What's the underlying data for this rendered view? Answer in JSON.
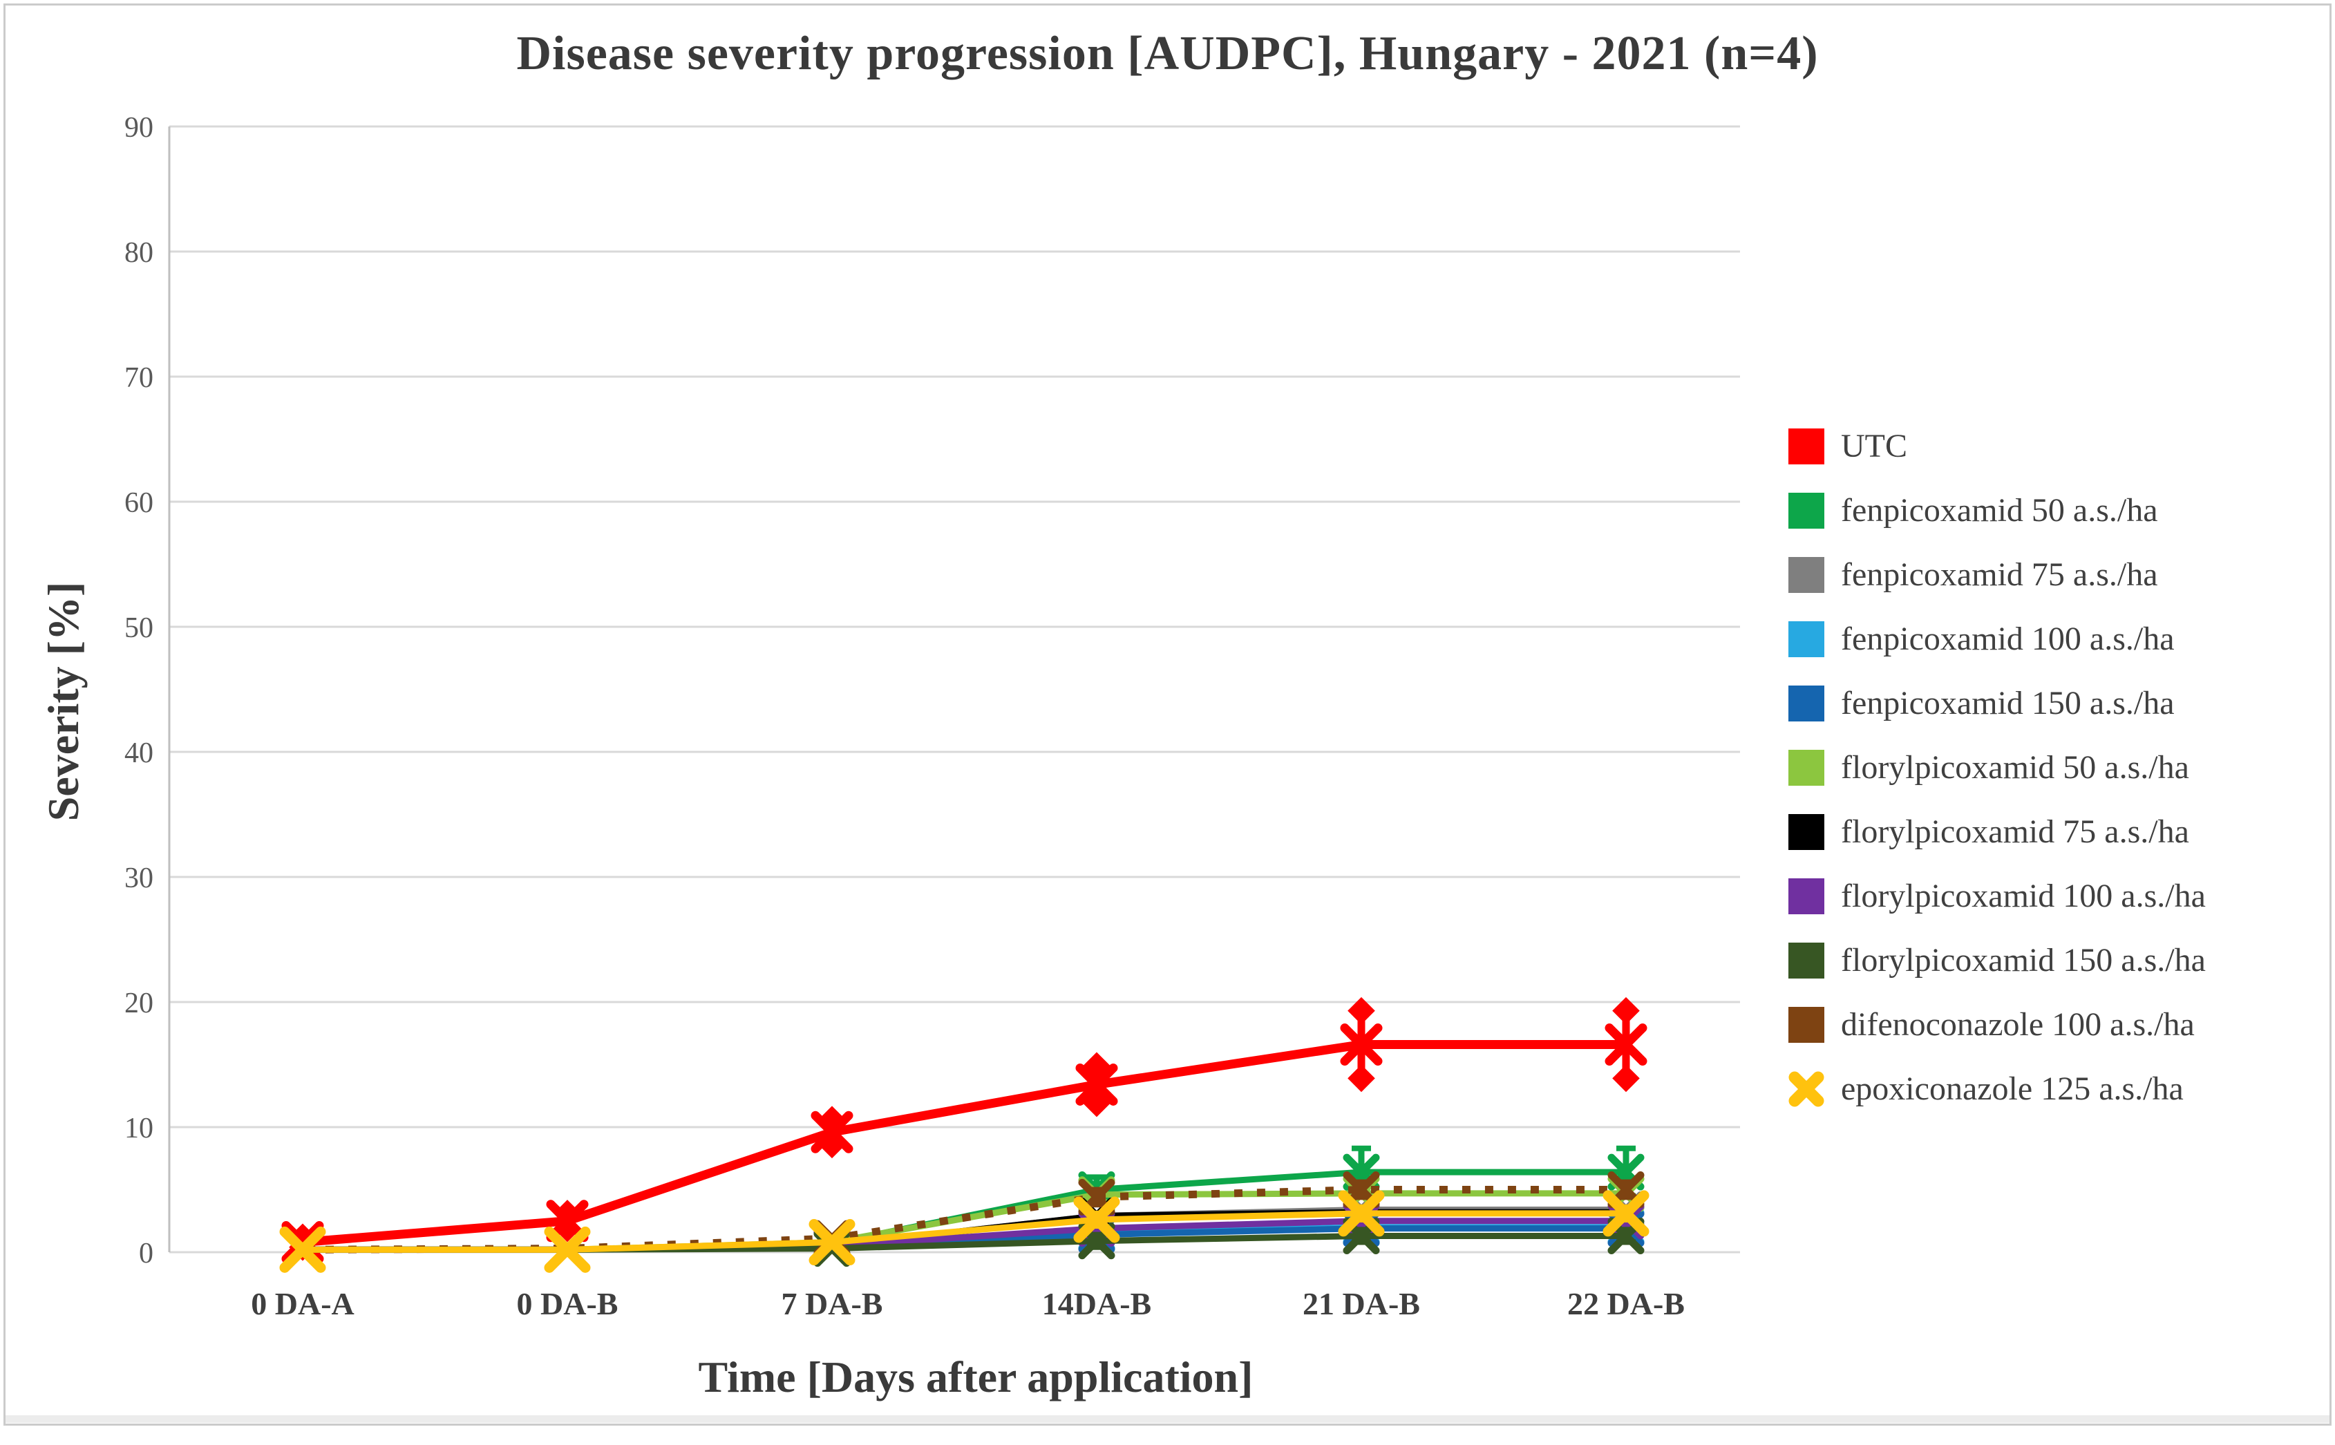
{
  "chart_data": {
    "type": "line",
    "title": "Disease severity progression [AUDPC], Hungary - 2021 (n=4)",
    "xlabel": "Time [Days after application]",
    "ylabel": "Severity [%]",
    "categories": [
      "0 DA-A",
      "0 DA-B",
      "7 DA-B",
      "14DA-B",
      "21 DA-B",
      "22 DA-B"
    ],
    "ylim": [
      0,
      90
    ],
    "y_ticks": [
      0,
      10,
      20,
      30,
      40,
      50,
      60,
      70,
      80,
      90
    ],
    "grid": true,
    "legend_position": "right",
    "colors": {
      "grid": "#D9D9D9",
      "axis_line": "#BFBFBF",
      "tick_text": "#595959",
      "label_text": "#3A3A3A"
    },
    "series": [
      {
        "id": "utc",
        "name": "UTC",
        "label": "UTC",
        "color": "#FF0000",
        "line": "solid",
        "marker": "x",
        "legend_swatch": "square",
        "error_cap": "diamond",
        "values": [
          0.8,
          2.5,
          9.6,
          13.4,
          16.6,
          16.6
        ],
        "error": [
          0.4,
          0.6,
          1.0,
          1.5,
          2.7,
          2.7
        ]
      },
      {
        "id": "fenpicoxamid-50",
        "name": "fenpicoxamid 50 a.s./ha",
        "label": "fenpicoxamid 50 a.s./ha",
        "color": "#0DA64A",
        "line": "solid",
        "marker": "x",
        "legend_swatch": "square",
        "error_cap": "tick",
        "values": [
          0.2,
          0.2,
          0.7,
          5.0,
          6.4,
          6.4
        ],
        "error": [
          0,
          0,
          0.3,
          1.0,
          1.9,
          1.9
        ]
      },
      {
        "id": "fenpicoxamid-75",
        "name": "fenpicoxamid 75 a.s./ha",
        "label": "fenpicoxamid 75 a.s./ha",
        "color": "#7F7F7F",
        "line": "solid",
        "marker": "x",
        "legend_swatch": "square",
        "error_cap": "tick",
        "values": [
          0.2,
          0.2,
          0.5,
          2.9,
          3.4,
          3.4
        ],
        "error": null
      },
      {
        "id": "fenpicoxamid-100",
        "name": "fenpicoxamid 100 a.s./ha",
        "label": "fenpicoxamid 100 a.s./ha",
        "color": "#27A9E1",
        "line": "solid",
        "marker": "x",
        "legend_swatch": "square",
        "error_cap": "tick",
        "values": [
          0.2,
          0.2,
          0.4,
          1.5,
          2.0,
          2.0
        ],
        "error": [
          0,
          0,
          0,
          0.8,
          0.8,
          0.8
        ]
      },
      {
        "id": "fenpicoxamid-150",
        "name": "fenpicoxamid 150 a.s./ha",
        "label": "fenpicoxamid 150 a.s./ha",
        "color": "#1565AF",
        "line": "solid",
        "marker": "x",
        "legend_swatch": "square",
        "error_cap": "tick",
        "values": [
          0.2,
          0.2,
          0.4,
          1.4,
          1.9,
          1.9
        ],
        "error": null
      },
      {
        "id": "florylpicoxamid-50",
        "name": "florylpicoxamid 50 a.s./ha",
        "label": "florylpicoxamid 50 a.s./ha",
        "color": "#8CC63F",
        "line": "solid",
        "marker": "x",
        "legend_swatch": "square",
        "error_cap": "tick",
        "values": [
          0.2,
          0.2,
          0.8,
          4.6,
          4.7,
          4.7
        ],
        "error": null
      },
      {
        "id": "florylpicoxamid-75",
        "name": "florylpicoxamid 75 a.s./ha",
        "label": "florylpicoxamid 75 a.s./ha",
        "color": "#000000",
        "line": "solid",
        "marker": "x",
        "legend_swatch": "square",
        "error_cap": "tick",
        "values": [
          0.2,
          0.2,
          0.5,
          2.9,
          3.2,
          3.2
        ],
        "error": null
      },
      {
        "id": "florylpicoxamid-100",
        "name": "florylpicoxamid 100 a.s./ha",
        "label": "florylpicoxamid 100 a.s./ha",
        "color": "#7030A0",
        "line": "solid",
        "marker": "x",
        "legend_swatch": "square",
        "error_cap": "tick",
        "values": [
          0.2,
          0.2,
          0.5,
          1.9,
          2.5,
          2.5
        ],
        "error": null
      },
      {
        "id": "florylpicoxamid-150",
        "name": "florylpicoxamid 150 a.s./ha",
        "label": "florylpicoxamid 150 a.s./ha",
        "color": "#375623",
        "line": "solid",
        "marker": "x",
        "legend_swatch": "square",
        "error_cap": "tick",
        "values": [
          0.2,
          0.2,
          0.3,
          0.9,
          1.3,
          1.3
        ],
        "error": [
          0,
          0,
          0,
          0.5,
          0.5,
          0.5
        ]
      },
      {
        "id": "difenoconazole-100",
        "name": "difenoconazole 100 a.s./ha",
        "label": "difenoconazole 100 a.s./ha",
        "color": "#7E4312",
        "line": "dotted",
        "marker": "x",
        "legend_swatch": "square",
        "error_cap": "tick",
        "values": [
          0.2,
          0.3,
          1.1,
          4.4,
          5.0,
          5.0
        ],
        "error": [
          0,
          0,
          0,
          0.6,
          0.6,
          0.6
        ]
      },
      {
        "id": "epoxiconazole-125",
        "name": "epoxiconazole 125 a.s./ha",
        "label": "epoxiconazole 125 a.s./ha",
        "color": "#FFC20E",
        "line": "solid",
        "marker": "x",
        "legend_swatch": "x",
        "error_cap": "tick",
        "values": [
          0.2,
          0.2,
          0.8,
          2.6,
          3.1,
          3.1
        ],
        "error": [
          0,
          0,
          0,
          0.5,
          0.5,
          0.5
        ]
      }
    ]
  }
}
